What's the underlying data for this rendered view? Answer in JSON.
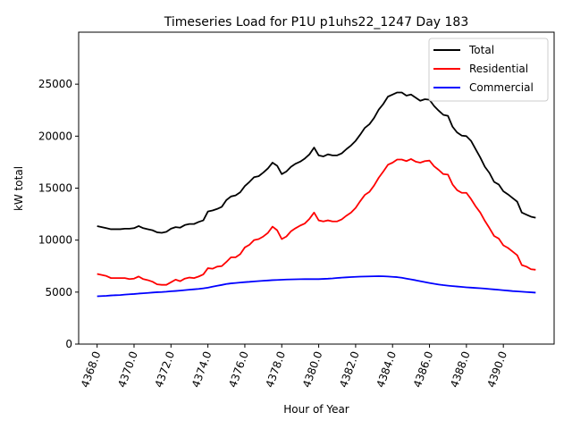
{
  "chart_data": {
    "type": "line",
    "title": "Timeseries Load for P1U p1uhs22_1247  Day 183",
    "xlabel": "Hour of Year",
    "ylabel": "kW total",
    "xlim": [
      4367.0,
      4392.75
    ],
    "ylim": [
      0,
      30000
    ],
    "xticks": [
      4368,
      4370,
      4372,
      4374,
      4376,
      4378,
      4380,
      4382,
      4384,
      4386,
      4388,
      4390
    ],
    "xtick_labels": [
      "4368.0",
      "4370.0",
      "4372.0",
      "4374.0",
      "4376.0",
      "4378.0",
      "4380.0",
      "4382.0",
      "4384.0",
      "4386.0",
      "4388.0",
      "4390.0"
    ],
    "yticks": [
      0,
      5000,
      10000,
      15000,
      20000,
      25000
    ],
    "ytick_labels": [
      "0",
      "5000",
      "10000",
      "15000",
      "20000",
      "25000"
    ],
    "legend_position": "top-right",
    "x": [
      4368.0,
      4368.25,
      4368.5,
      4368.75,
      4369.0,
      4369.25,
      4369.5,
      4369.75,
      4370.0,
      4370.25,
      4370.5,
      4370.75,
      4371.0,
      4371.25,
      4371.5,
      4371.75,
      4372.0,
      4372.25,
      4372.5,
      4372.75,
      4373.0,
      4373.25,
      4373.5,
      4373.75,
      4374.0,
      4374.25,
      4374.5,
      4374.75,
      4375.0,
      4375.25,
      4375.5,
      4375.75,
      4376.0,
      4376.25,
      4376.5,
      4376.75,
      4377.0,
      4377.25,
      4377.5,
      4377.75,
      4378.0,
      4378.25,
      4378.5,
      4378.75,
      4379.0,
      4379.25,
      4379.5,
      4379.75,
      4380.0,
      4380.25,
      4380.5,
      4380.75,
      4381.0,
      4381.25,
      4381.5,
      4381.75,
      4382.0,
      4382.25,
      4382.5,
      4382.75,
      4383.0,
      4383.25,
      4383.5,
      4383.75,
      4384.0,
      4384.25,
      4384.5,
      4384.75,
      4385.0,
      4385.25,
      4385.5,
      4385.75,
      4386.0,
      4386.25,
      4386.5,
      4386.75,
      4387.0,
      4387.25,
      4387.5,
      4387.75,
      4388.0,
      4388.25,
      4388.5,
      4388.75,
      4389.0,
      4389.25,
      4389.5,
      4389.75,
      4390.0,
      4390.25,
      4390.5,
      4390.75,
      4391.0,
      4391.25,
      4391.5,
      4391.75
    ],
    "series": [
      {
        "name": "Total",
        "color": "#000000",
        "values": [
          11350,
          11250,
          11150,
          11050,
          11050,
          11050,
          11100,
          11100,
          11150,
          11350,
          11150,
          11050,
          10950,
          10750,
          10700,
          10800,
          11100,
          11250,
          11200,
          11450,
          11550,
          11550,
          11750,
          11900,
          12750,
          12850,
          13000,
          13200,
          13850,
          14200,
          14300,
          14600,
          15200,
          15600,
          16050,
          16150,
          16500,
          16900,
          17450,
          17150,
          16350,
          16600,
          17050,
          17350,
          17550,
          17850,
          18250,
          18900,
          18150,
          18050,
          18250,
          18150,
          18150,
          18350,
          18750,
          19100,
          19550,
          20150,
          20800,
          21150,
          21750,
          22550,
          23100,
          23800,
          24000,
          24200,
          24200,
          23900,
          24000,
          23700,
          23400,
          23550,
          23500,
          22900,
          22450,
          22050,
          21950,
          20900,
          20350,
          20050,
          20000,
          19550,
          18750,
          17950,
          17050,
          16450,
          15600,
          15350,
          14700,
          14400,
          14050,
          13700,
          12650,
          12450,
          12250,
          12150
        ]
      },
      {
        "name": "Residential",
        "color": "#ff0000",
        "values": [
          6750,
          6650,
          6550,
          6350,
          6350,
          6350,
          6350,
          6250,
          6300,
          6500,
          6250,
          6150,
          6000,
          5750,
          5700,
          5700,
          5950,
          6200,
          6050,
          6300,
          6400,
          6350,
          6500,
          6700,
          7300,
          7250,
          7450,
          7500,
          7900,
          8350,
          8350,
          8650,
          9300,
          9550,
          10000,
          10100,
          10350,
          10700,
          11300,
          10950,
          10100,
          10350,
          10850,
          11150,
          11400,
          11600,
          12050,
          12650,
          11900,
          11800,
          11900,
          11800,
          11800,
          12000,
          12350,
          12650,
          13100,
          13750,
          14350,
          14650,
          15250,
          16000,
          16600,
          17250,
          17450,
          17750,
          17750,
          17600,
          17800,
          17550,
          17450,
          17600,
          17650,
          17100,
          16750,
          16350,
          16300,
          15350,
          14800,
          14550,
          14550,
          13950,
          13250,
          12650,
          11850,
          11150,
          10400,
          10150,
          9500,
          9250,
          8900,
          8550,
          7600,
          7450,
          7200,
          7150
        ]
      },
      {
        "name": "Commercial",
        "color": "#0000ff",
        "values": [
          4600,
          4620,
          4640,
          4680,
          4700,
          4720,
          4760,
          4790,
          4820,
          4860,
          4890,
          4920,
          4960,
          4990,
          5010,
          5040,
          5080,
          5110,
          5150,
          5190,
          5230,
          5270,
          5310,
          5360,
          5430,
          5520,
          5610,
          5690,
          5780,
          5840,
          5880,
          5920,
          5960,
          5990,
          6030,
          6060,
          6090,
          6120,
          6150,
          6170,
          6190,
          6210,
          6220,
          6230,
          6240,
          6250,
          6250,
          6250,
          6250,
          6270,
          6290,
          6320,
          6360,
          6390,
          6420,
          6450,
          6470,
          6490,
          6500,
          6510,
          6520,
          6530,
          6520,
          6500,
          6470,
          6440,
          6380,
          6300,
          6220,
          6140,
          6050,
          5960,
          5880,
          5800,
          5730,
          5670,
          5620,
          5580,
          5540,
          5500,
          5460,
          5430,
          5400,
          5370,
          5340,
          5300,
          5260,
          5220,
          5180,
          5140,
          5100,
          5070,
          5040,
          5010,
          4980,
          4950
        ]
      }
    ]
  }
}
